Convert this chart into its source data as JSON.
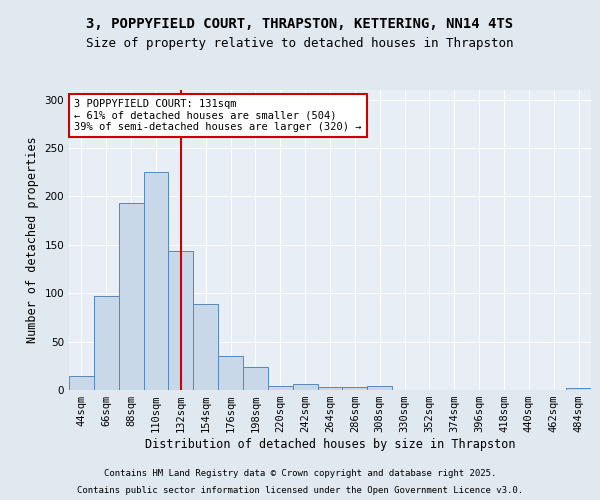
{
  "title_line1": "3, POPPYFIELD COURT, THRAPSTON, KETTERING, NN14 4TS",
  "title_line2": "Size of property relative to detached houses in Thrapston",
  "xlabel": "Distribution of detached houses by size in Thrapston",
  "ylabel": "Number of detached properties",
  "categories": [
    "44sqm",
    "66sqm",
    "88sqm",
    "110sqm",
    "132sqm",
    "154sqm",
    "176sqm",
    "198sqm",
    "220sqm",
    "242sqm",
    "264sqm",
    "286sqm",
    "308sqm",
    "330sqm",
    "352sqm",
    "374sqm",
    "396sqm",
    "418sqm",
    "440sqm",
    "462sqm",
    "484sqm"
  ],
  "values": [
    14,
    97,
    193,
    225,
    144,
    89,
    35,
    24,
    4,
    6,
    3,
    3,
    4,
    0,
    0,
    0,
    0,
    0,
    0,
    0,
    2
  ],
  "bar_color": "#c8d8e8",
  "bar_edge_color": "#5588bb",
  "red_line_index": 4,
  "annotation_text_line1": "3 POPPYFIELD COURT: 131sqm",
  "annotation_text_line2": "← 61% of detached houses are smaller (504)",
  "annotation_text_line3": "39% of semi-detached houses are larger (320) →",
  "annotation_box_color": "#ffffff",
  "annotation_box_edge": "#cc0000",
  "red_line_color": "#cc0000",
  "ylim": [
    0,
    310
  ],
  "yticks": [
    0,
    50,
    100,
    150,
    200,
    250,
    300
  ],
  "footer_line1": "Contains HM Land Registry data © Crown copyright and database right 2025.",
  "footer_line2": "Contains public sector information licensed under the Open Government Licence v3.0.",
  "bg_color": "#e0e8f0",
  "plot_bg_color": "#e8eef6",
  "grid_color": "#ffffff",
  "title_fontsize": 10,
  "subtitle_fontsize": 9,
  "axis_label_fontsize": 8.5,
  "tick_fontsize": 7.5,
  "annotation_fontsize": 7.5,
  "footer_fontsize": 6.5
}
